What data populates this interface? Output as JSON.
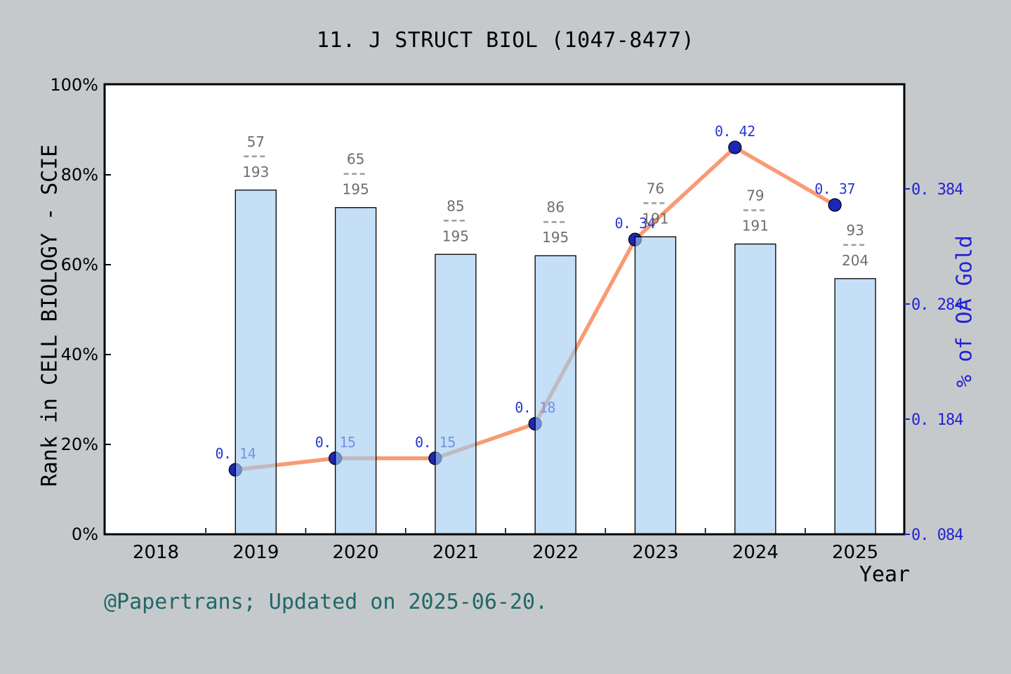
{
  "title": "11. J STRUCT BIOL (1047-8477)",
  "footer": "@Papertrans; Updated on 2025-06-20.",
  "chart_data": {
    "type": "bar",
    "combo": "bar+line",
    "grid": false,
    "legend": false,
    "x_years": [
      "2018",
      "2019",
      "2020",
      "2021",
      "2022",
      "2023",
      "2024",
      "2025"
    ],
    "x_axis": {
      "label": "Year"
    },
    "left_axis": {
      "label": "Rank in CELL BIOLOGY - SCIE",
      "ticks": [
        "0%",
        "20%",
        "40%",
        "60%",
        "80%",
        "100%"
      ],
      "tick_percents": [
        0,
        20,
        40,
        60,
        80,
        100
      ],
      "range": [
        0,
        100
      ]
    },
    "right_axis": {
      "label": "% of OA Gold",
      "ticks": [
        0.084,
        0.184,
        0.284,
        0.384
      ],
      "tick_labels": [
        "0. 084",
        "0. 184",
        "0. 284",
        "0. 384"
      ]
    },
    "bars": {
      "series_name": "Rank in CELL BIOLOGY - SCIE",
      "axis": "left",
      "points": [
        {
          "year": "2019",
          "rank": "57",
          "total": "193",
          "height_percent": 76.6
        },
        {
          "year": "2020",
          "rank": "65",
          "total": "195",
          "height_percent": 72.7
        },
        {
          "year": "2021",
          "rank": "85",
          "total": "195",
          "height_percent": 62.3
        },
        {
          "year": "2022",
          "rank": "86",
          "total": "195",
          "height_percent": 62.0
        },
        {
          "year": "2023",
          "rank": "76",
          "total": "191",
          "height_percent": 66.2
        },
        {
          "year": "2024",
          "rank": "79",
          "total": "191",
          "height_percent": 64.6
        },
        {
          "year": "2025",
          "rank": "93",
          "total": "204",
          "height_percent": 56.9
        }
      ]
    },
    "line": {
      "series_name": "% of OA Gold",
      "axis": "right",
      "points": [
        {
          "year": "2019",
          "value": 0.14,
          "label": "0. 14"
        },
        {
          "year": "2020",
          "value": 0.15,
          "label": "0. 15"
        },
        {
          "year": "2021",
          "value": 0.15,
          "label": "0. 15"
        },
        {
          "year": "2022",
          "value": 0.18,
          "label": "0. 18"
        },
        {
          "year": "2023",
          "value": 0.34,
          "label": "0. 34"
        },
        {
          "year": "2024",
          "value": 0.42,
          "label": "0. 42"
        },
        {
          "year": "2025",
          "value": 0.37,
          "label": "0. 37"
        }
      ]
    },
    "colors": {
      "page_background": "#c6c9cc",
      "plot_background": "#ffffff",
      "bar_fill_apparent": "#c4dff6",
      "bar_border": "#000000",
      "line": "#f89b74",
      "marker": "#1c27b8",
      "value_label_text": "#2638cc",
      "right_axis_text": "#2222d2",
      "fraction_text": "#6e6e6e",
      "fraction_dash": "#9b9b9b",
      "axis_text": "#000000",
      "footer_text": "#1f6868"
    }
  }
}
